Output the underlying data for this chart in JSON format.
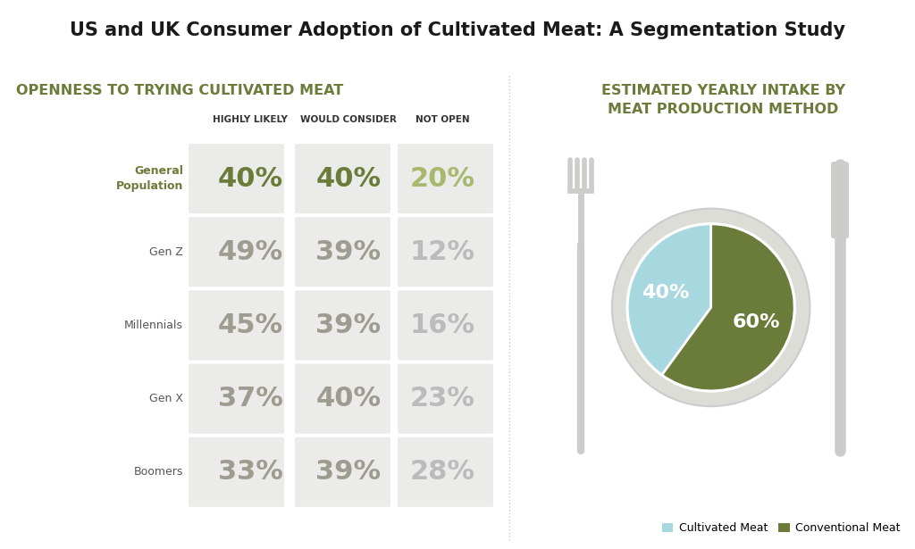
{
  "title": "US and UK Consumer Adoption of Cultivated Meat: A Segmentation Study",
  "left_section_title": "OPENNESS TO TRYING CULTIVATED MEAT",
  "right_section_title": "ESTIMATED YEARLY INTAKE BY\nMEAT PRODUCTION METHOD",
  "col_headers": [
    "HIGHLY LIKELY",
    "WOULD CONSIDER",
    "NOT OPEN"
  ],
  "rows": [
    {
      "label": "General\nPopulation",
      "values": [
        40,
        40,
        20
      ],
      "highlight": true
    },
    {
      "label": "Gen Z",
      "values": [
        49,
        39,
        12
      ],
      "highlight": false
    },
    {
      "label": "Millennials",
      "values": [
        45,
        39,
        16
      ],
      "highlight": false
    },
    {
      "label": "Gen X",
      "values": [
        37,
        40,
        23
      ],
      "highlight": false
    },
    {
      "label": "Boomers",
      "values": [
        33,
        39,
        28
      ],
      "highlight": false
    }
  ],
  "pie_data": [
    40,
    60
  ],
  "pie_colors": [
    "#a8d8df",
    "#6b7c3a"
  ],
  "pie_labels": [
    "40%",
    "60%"
  ],
  "legend_labels": [
    "Cultivated Meat",
    "Conventional Meat"
  ],
  "highlight_color": "#6b7c3a",
  "highlight_color_light": "#a8b86c",
  "normal_color": "#9c9c90",
  "col_bg_color": "#ebebea",
  "left_title_color": "#6b7c3a",
  "title_color": "#1a1a1a",
  "background_color": "#ffffff",
  "plate_outer_color": "#ddddd8",
  "plate_border_color": "#cccccc",
  "fork_knife_color": "#ccccca",
  "divider_color": "#cccccc"
}
